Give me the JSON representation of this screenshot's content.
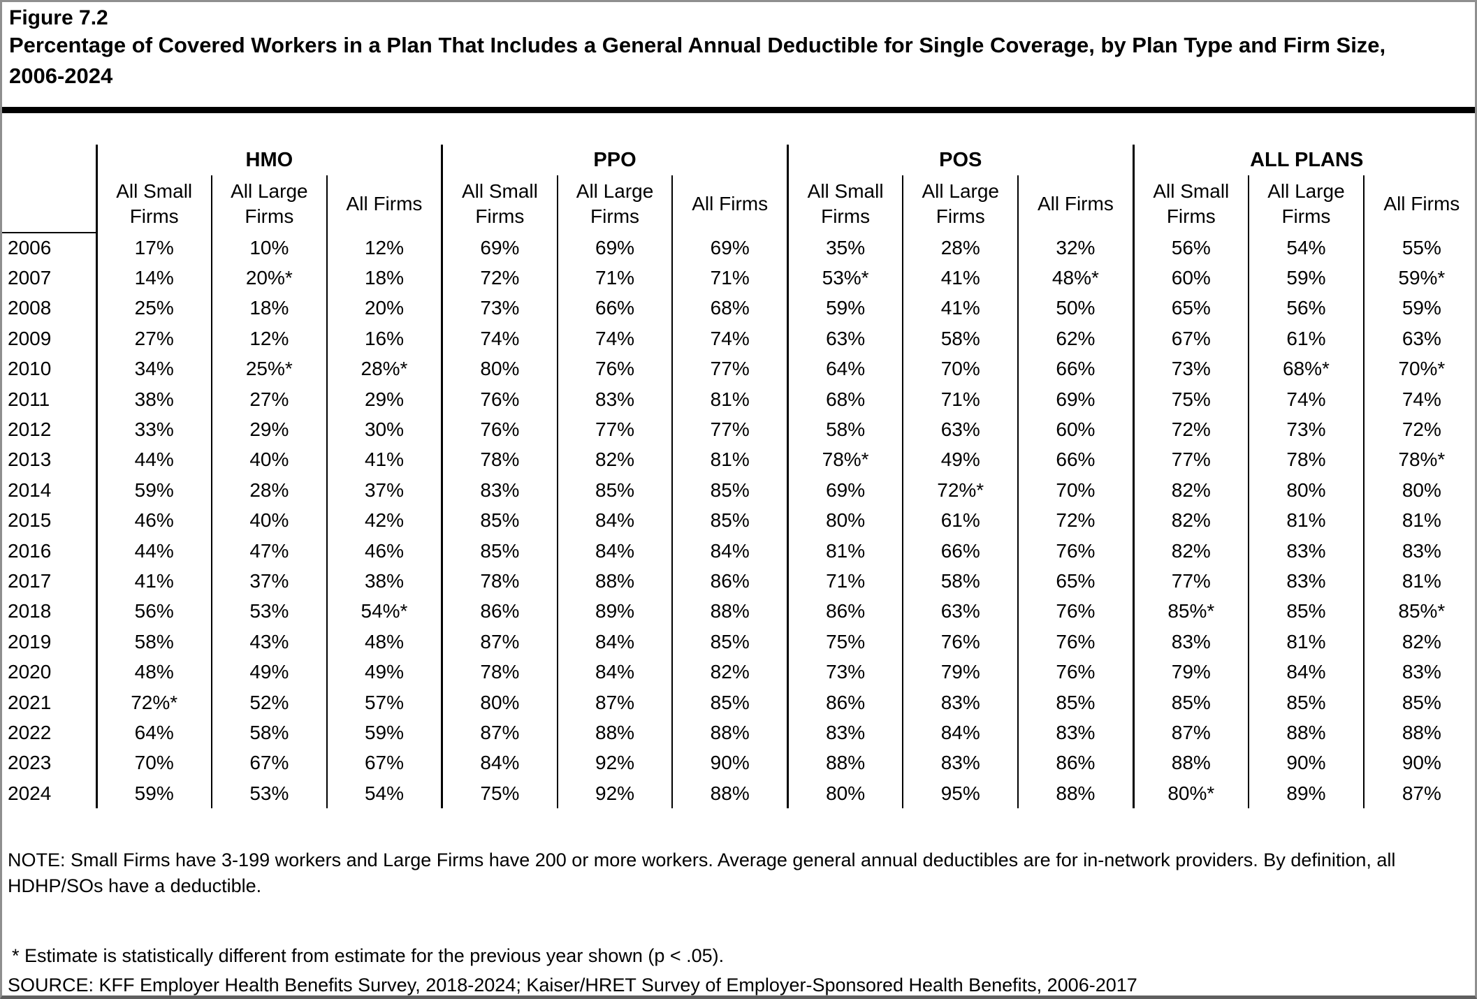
{
  "header": {
    "figure_label": "Figure 7.2",
    "title": "Percentage of Covered Workers in a Plan That Includes a General Annual Deductible for Single Coverage, by Plan Type and Firm Size, 2006-2024"
  },
  "chart_data": {
    "type": "table",
    "groups": [
      "HMO",
      "PPO",
      "POS",
      "ALL PLANS"
    ],
    "subcolumns": [
      "All Small Firms",
      "All Large Firms",
      "All Firms"
    ],
    "rows": [
      {
        "year": "2006",
        "values": [
          "17%",
          "10%",
          "12%",
          "69%",
          "69%",
          "69%",
          "35%",
          "28%",
          "32%",
          "56%",
          "54%",
          "55%"
        ]
      },
      {
        "year": "2007",
        "values": [
          "14%",
          "20%*",
          "18%",
          "72%",
          "71%",
          "71%",
          "53%*",
          "41%",
          "48%*",
          "60%",
          "59%",
          "59%*"
        ]
      },
      {
        "year": "2008",
        "values": [
          "25%",
          "18%",
          "20%",
          "73%",
          "66%",
          "68%",
          "59%",
          "41%",
          "50%",
          "65%",
          "56%",
          "59%"
        ]
      },
      {
        "year": "2009",
        "values": [
          "27%",
          "12%",
          "16%",
          "74%",
          "74%",
          "74%",
          "63%",
          "58%",
          "62%",
          "67%",
          "61%",
          "63%"
        ]
      },
      {
        "year": "2010",
        "values": [
          "34%",
          "25%*",
          "28%*",
          "80%",
          "76%",
          "77%",
          "64%",
          "70%",
          "66%",
          "73%",
          "68%*",
          "70%*"
        ]
      },
      {
        "year": "2011",
        "values": [
          "38%",
          "27%",
          "29%",
          "76%",
          "83%",
          "81%",
          "68%",
          "71%",
          "69%",
          "75%",
          "74%",
          "74%"
        ]
      },
      {
        "year": "2012",
        "values": [
          "33%",
          "29%",
          "30%",
          "76%",
          "77%",
          "77%",
          "58%",
          "63%",
          "60%",
          "72%",
          "73%",
          "72%"
        ]
      },
      {
        "year": "2013",
        "values": [
          "44%",
          "40%",
          "41%",
          "78%",
          "82%",
          "81%",
          "78%*",
          "49%",
          "66%",
          "77%",
          "78%",
          "78%*"
        ]
      },
      {
        "year": "2014",
        "values": [
          "59%",
          "28%",
          "37%",
          "83%",
          "85%",
          "85%",
          "69%",
          "72%*",
          "70%",
          "82%",
          "80%",
          "80%"
        ]
      },
      {
        "year": "2015",
        "values": [
          "46%",
          "40%",
          "42%",
          "85%",
          "84%",
          "85%",
          "80%",
          "61%",
          "72%",
          "82%",
          "81%",
          "81%"
        ]
      },
      {
        "year": "2016",
        "values": [
          "44%",
          "47%",
          "46%",
          "85%",
          "84%",
          "84%",
          "81%",
          "66%",
          "76%",
          "82%",
          "83%",
          "83%"
        ]
      },
      {
        "year": "2017",
        "values": [
          "41%",
          "37%",
          "38%",
          "78%",
          "88%",
          "86%",
          "71%",
          "58%",
          "65%",
          "77%",
          "83%",
          "81%"
        ]
      },
      {
        "year": "2018",
        "values": [
          "56%",
          "53%",
          "54%*",
          "86%",
          "89%",
          "88%",
          "86%",
          "63%",
          "76%",
          "85%*",
          "85%",
          "85%*"
        ]
      },
      {
        "year": "2019",
        "values": [
          "58%",
          "43%",
          "48%",
          "87%",
          "84%",
          "85%",
          "75%",
          "76%",
          "76%",
          "83%",
          "81%",
          "82%"
        ]
      },
      {
        "year": "2020",
        "values": [
          "48%",
          "49%",
          "49%",
          "78%",
          "84%",
          "82%",
          "73%",
          "79%",
          "76%",
          "79%",
          "84%",
          "83%"
        ]
      },
      {
        "year": "2021",
        "values": [
          "72%*",
          "52%",
          "57%",
          "80%",
          "87%",
          "85%",
          "86%",
          "83%",
          "85%",
          "85%",
          "85%",
          "85%"
        ]
      },
      {
        "year": "2022",
        "values": [
          "64%",
          "58%",
          "59%",
          "87%",
          "88%",
          "88%",
          "83%",
          "84%",
          "83%",
          "87%",
          "88%",
          "88%"
        ]
      },
      {
        "year": "2023",
        "values": [
          "70%",
          "67%",
          "67%",
          "84%",
          "92%",
          "90%",
          "88%",
          "83%",
          "86%",
          "88%",
          "90%",
          "90%"
        ]
      },
      {
        "year": "2024",
        "values": [
          "59%",
          "53%",
          "54%",
          "75%",
          "92%",
          "88%",
          "80%",
          "95%",
          "88%",
          "80%*",
          "89%",
          "87%"
        ]
      }
    ]
  },
  "footer": {
    "note": "NOTE: Small Firms have 3-199 workers and Large Firms have 200 or more workers. Average general annual deductibles are for in-network providers. By definition, all HDHP/SOs have a deductible.",
    "footnote": "* Estimate is statistically different from estimate for the previous year shown (p < .05).",
    "source": "SOURCE: KFF Employer Health Benefits Survey, 2018-2024; Kaiser/HRET Survey of Employer-Sponsored Health Benefits, 2006-2017"
  }
}
